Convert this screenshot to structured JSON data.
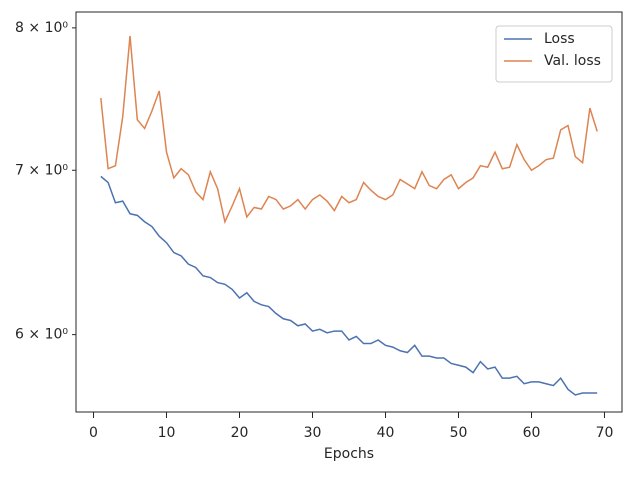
{
  "chart_data": {
    "type": "line",
    "xlabel": "Epochs",
    "yscale": "log",
    "x": [
      1,
      2,
      3,
      4,
      5,
      6,
      7,
      8,
      9,
      10,
      11,
      12,
      13,
      14,
      15,
      16,
      17,
      18,
      19,
      20,
      21,
      22,
      23,
      24,
      25,
      26,
      27,
      28,
      29,
      30,
      31,
      32,
      33,
      34,
      35,
      36,
      37,
      38,
      39,
      40,
      41,
      42,
      43,
      44,
      45,
      46,
      47,
      48,
      49,
      50,
      51,
      52,
      53,
      54,
      55,
      56,
      57,
      58,
      59,
      60,
      61,
      62,
      63,
      64,
      65,
      66,
      67,
      68,
      69
    ],
    "series": [
      {
        "name": "Loss",
        "color": "#4c72b0",
        "values": [
          6.96,
          6.92,
          6.79,
          6.8,
          6.72,
          6.71,
          6.67,
          6.64,
          6.58,
          6.54,
          6.48,
          6.46,
          6.41,
          6.39,
          6.34,
          6.33,
          6.3,
          6.29,
          6.26,
          6.21,
          6.24,
          6.19,
          6.17,
          6.16,
          6.12,
          6.09,
          6.08,
          6.05,
          6.06,
          6.02,
          6.03,
          6.01,
          6.02,
          6.02,
          5.97,
          5.99,
          5.95,
          5.95,
          5.97,
          5.94,
          5.93,
          5.91,
          5.9,
          5.94,
          5.88,
          5.88,
          5.87,
          5.87,
          5.84,
          5.83,
          5.82,
          5.79,
          5.85,
          5.81,
          5.82,
          5.76,
          5.76,
          5.77,
          5.73,
          5.74,
          5.74,
          5.73,
          5.72,
          5.76,
          5.7,
          5.67,
          5.68,
          5.68,
          5.68
        ]
      },
      {
        "name": "Val. loss",
        "color": "#dd8452",
        "values": [
          7.49,
          7.01,
          7.03,
          7.36,
          7.94,
          7.34,
          7.28,
          7.4,
          7.54,
          7.12,
          6.95,
          7.01,
          6.97,
          6.86,
          6.81,
          6.99,
          6.88,
          6.67,
          6.77,
          6.88,
          6.7,
          6.76,
          6.75,
          6.83,
          6.81,
          6.75,
          6.77,
          6.81,
          6.75,
          6.81,
          6.84,
          6.8,
          6.74,
          6.83,
          6.79,
          6.81,
          6.92,
          6.87,
          6.83,
          6.81,
          6.84,
          6.94,
          6.91,
          6.88,
          6.99,
          6.9,
          6.88,
          6.94,
          6.97,
          6.88,
          6.92,
          6.95,
          7.03,
          7.02,
          7.12,
          7.01,
          7.02,
          7.17,
          7.07,
          7.0,
          7.03,
          7.07,
          7.08,
          7.27,
          7.3,
          7.09,
          7.05,
          7.42,
          7.26
        ]
      }
    ],
    "xlim": [
      -2.4,
      72.4
    ],
    "xticks": [
      0,
      10,
      20,
      30,
      40,
      50,
      60,
      70
    ],
    "ylim": [
      5.58,
      8.12
    ],
    "yticks": [
      {
        "value": 6,
        "label": "6 × 10⁰"
      },
      {
        "value": 7,
        "label": "7 × 10⁰"
      },
      {
        "value": 8,
        "label": "8 × 10⁰"
      }
    ],
    "legend": "upper right"
  }
}
